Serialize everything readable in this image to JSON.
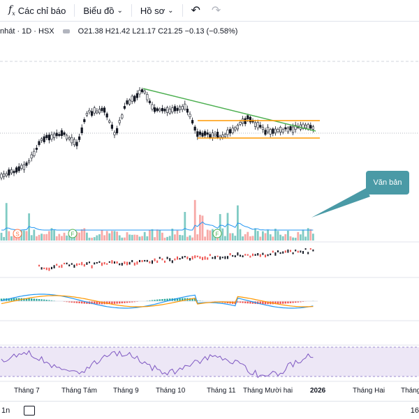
{
  "toolbar": {
    "indicators_label": "Các chỉ báo",
    "chart_label": "Biểu đồ",
    "profile_label": "Hồ sơ"
  },
  "legend": {
    "symbol": "nhát · 1D · HSX",
    "open": "O21.38",
    "high": "H21.42",
    "low": "L21.17",
    "close": "C21.25",
    "change": "−0.13 (−0.58%)"
  },
  "callout": {
    "text": "Văn bản"
  },
  "time_axis": {
    "labels": [
      "Tháng 7",
      "Tháng Tám",
      "Tháng 9",
      "Tháng 10",
      "Tháng 11",
      "Tháng Mười hai",
      "2026",
      "Tháng Hai",
      "Tháng"
    ]
  },
  "footer": {
    "range": "1n",
    "time": "16"
  },
  "markers": [
    "S",
    "F",
    "F"
  ],
  "colors": {
    "up": "#26a69a",
    "down": "#ef5350",
    "trend": "#4caf50",
    "channel": "#ff9800",
    "rsi": "#7e57c2",
    "ma": "#2196f3"
  }
}
